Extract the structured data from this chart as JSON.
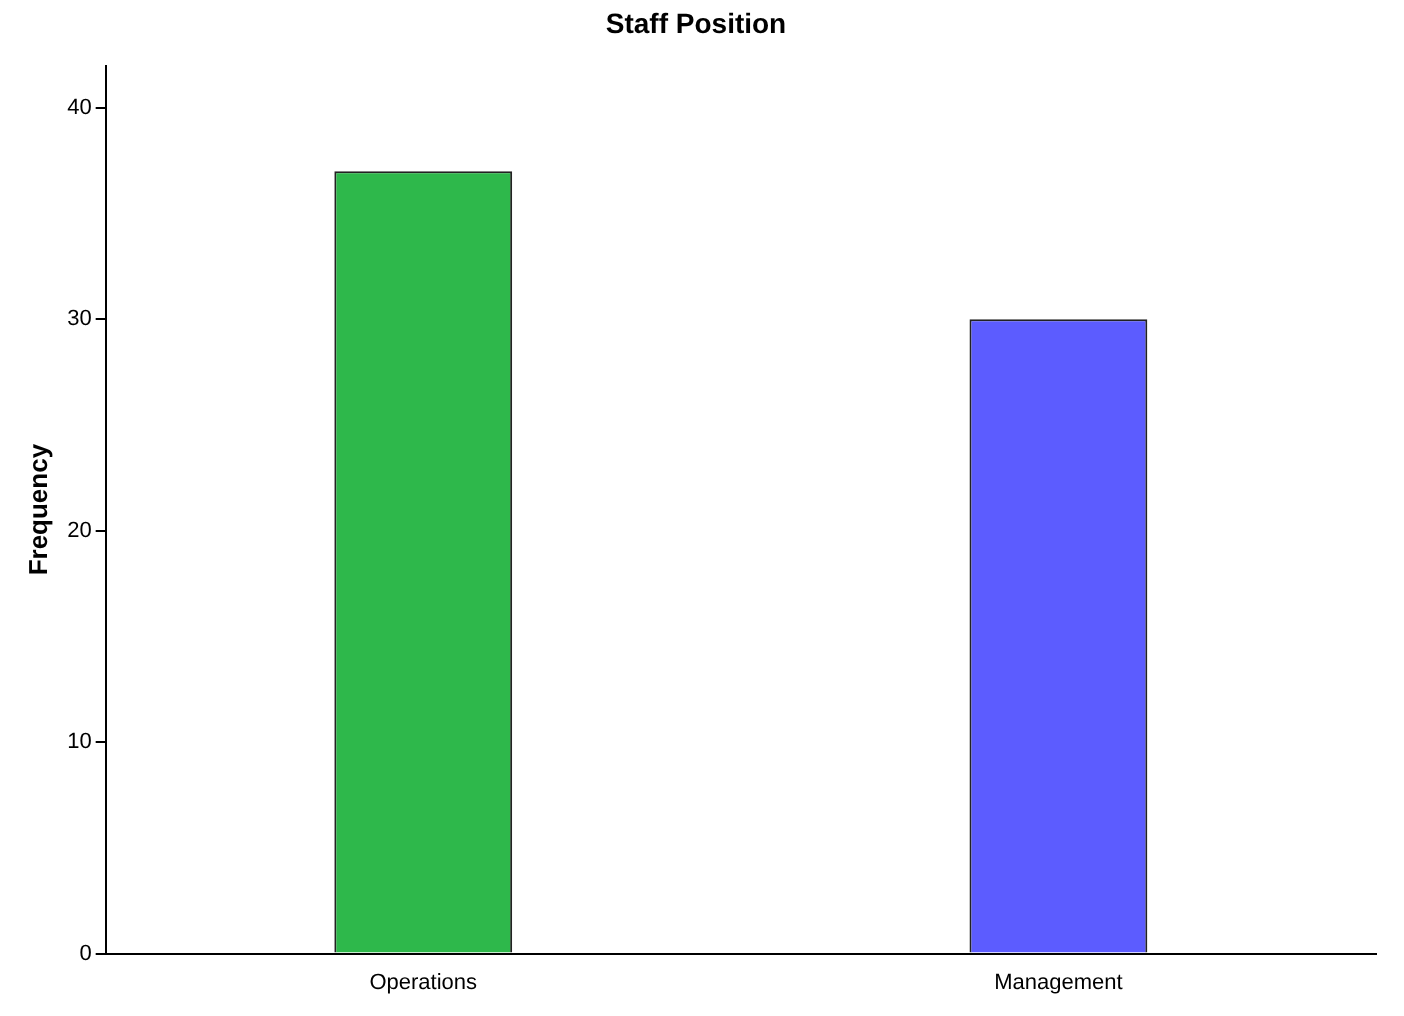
{
  "chart_data": {
    "type": "bar",
    "title": "Staff Position",
    "ylabel": "Frequency",
    "categories": [
      "Operations",
      "Management"
    ],
    "values": [
      37,
      30
    ],
    "colors": [
      "#2eb84b",
      "#5c5cff"
    ],
    "ylim": [
      0,
      42
    ],
    "yticks": [
      0,
      10,
      20,
      30,
      40
    ],
    "grid": false,
    "legend": false
  }
}
